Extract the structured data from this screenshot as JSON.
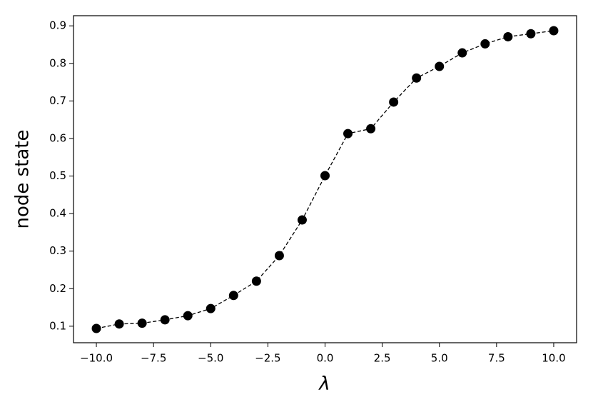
{
  "chart_data": {
    "type": "line",
    "x_label": "λ",
    "y_label": "node state",
    "x": [
      -10,
      -9,
      -8,
      -7,
      -6,
      -5,
      -4,
      -3,
      -2,
      -1,
      0,
      1,
      2,
      3,
      4,
      5,
      6,
      7,
      8,
      9,
      10
    ],
    "series": [
      {
        "color": "#000000",
        "values": [
          0.094,
          0.106,
          0.108,
          0.117,
          0.128,
          0.147,
          0.182,
          0.22,
          0.288,
          0.383,
          0.501,
          0.613,
          0.626,
          0.697,
          0.761,
          0.792,
          0.828,
          0.852,
          0.871,
          0.879,
          0.887
        ]
      }
    ],
    "xlim": [
      -11,
      11
    ],
    "ylim": [
      0.056,
      0.927
    ],
    "xticks": [
      {
        "value": -10,
        "label": "−10.0"
      },
      {
        "value": -7.5,
        "label": "−7.5"
      },
      {
        "value": -5,
        "label": "−5.0"
      },
      {
        "value": -2.5,
        "label": "−2.5"
      },
      {
        "value": 0,
        "label": "0.0"
      },
      2.5,
      {
        "value": 5,
        "label": "5.0"
      },
      7.5,
      {
        "value": 10,
        "label": "10.0"
      }
    ],
    "yticks": [
      0.1,
      0.2,
      0.3,
      0.4,
      0.5,
      0.6,
      0.7,
      0.8,
      0.9
    ],
    "line_style": "dashed",
    "marker": "circle",
    "grid": false
  }
}
